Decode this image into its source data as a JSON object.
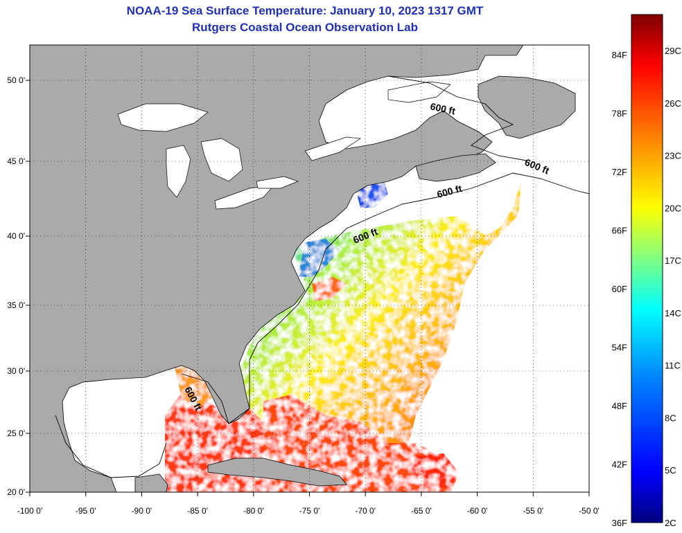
{
  "title_line1": "NOAA-19 Sea Surface Temperature:  January 10, 2023 1317 GMT",
  "title_line2": "Rutgers Coastal Ocean Observation Lab",
  "map": {
    "lon_labels": [
      "-100 0'",
      "-95 0'",
      "-90 0'",
      "-85 0'",
      "-80 0'",
      "-75 0'",
      "-70 0'",
      "-65 0'",
      "-60 0'",
      "-55 0'",
      "-50 0'"
    ],
    "lon_values": [
      -100,
      -95,
      -90,
      -85,
      -80,
      -75,
      -70,
      -65,
      -60,
      -55,
      -50
    ],
    "lat_labels": [
      "50 0'",
      "45 0'",
      "40 0'",
      "35 0'",
      "30 0'",
      "25 0'",
      "20 0'"
    ],
    "lat_values": [
      50,
      45,
      40,
      35,
      30,
      25,
      20
    ],
    "lon_range": [
      -100,
      -50
    ],
    "lat_range": [
      20,
      52
    ],
    "depth_contour_label": "600 ft",
    "colors": {
      "land": "#aaaaaa",
      "ocean_no_data": "#ffffff",
      "grid": "#000000"
    }
  },
  "colorbar": {
    "fahrenheit_labels": [
      "84F",
      "78F",
      "72F",
      "66F",
      "60F",
      "54F",
      "48F",
      "42F",
      "36F"
    ],
    "celsius_labels": [
      "29C",
      "26C",
      "23C",
      "20C",
      "17C",
      "14C",
      "11C",
      "8C",
      "5C",
      "2C"
    ],
    "range_c": [
      2,
      31
    ],
    "colors": [
      "#000080",
      "#0000ff",
      "#0080ff",
      "#00ffff",
      "#80ff80",
      "#ffff00",
      "#ff8000",
      "#ff0000",
      "#800000"
    ]
  }
}
